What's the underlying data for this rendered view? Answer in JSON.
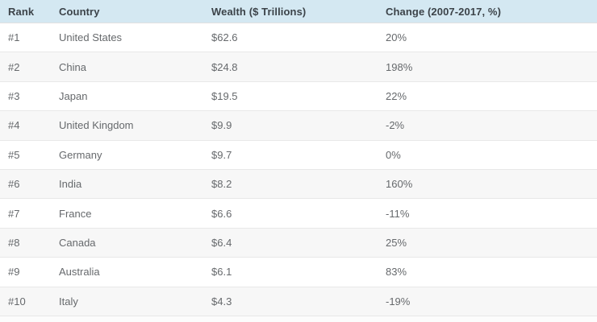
{
  "table": {
    "columns": [
      "Rank",
      "Country",
      "Wealth ($ Trillions)",
      "Change (2007-2017, %)"
    ],
    "rows": [
      [
        "#1",
        "United States",
        "$62.6",
        "20%"
      ],
      [
        "#2",
        "China",
        "$24.8",
        "198%"
      ],
      [
        "#3",
        "Japan",
        "$19.5",
        "22%"
      ],
      [
        "#4",
        "United Kingdom",
        "$9.9",
        "-2%"
      ],
      [
        "#5",
        "Germany",
        "$9.7",
        "0%"
      ],
      [
        "#6",
        "India",
        "$8.2",
        "160%"
      ],
      [
        "#7",
        "France",
        "$6.6",
        "-11%"
      ],
      [
        "#8",
        "Canada",
        "$6.4",
        "25%"
      ],
      [
        "#9",
        "Australia",
        "$6.1",
        "83%"
      ],
      [
        "#10",
        "Italy",
        "$4.3",
        "-19%"
      ]
    ]
  },
  "chart_data": {
    "type": "table",
    "title": "",
    "columns": [
      "Rank",
      "Country",
      "Wealth ($ Trillions)",
      "Change (2007-2017, %)"
    ],
    "rows": [
      {
        "rank": "#1",
        "country": "United States",
        "wealth_trillions": 62.6,
        "change_2007_2017_pct": 20
      },
      {
        "rank": "#2",
        "country": "China",
        "wealth_trillions": 24.8,
        "change_2007_2017_pct": 198
      },
      {
        "rank": "#3",
        "country": "Japan",
        "wealth_trillions": 19.5,
        "change_2007_2017_pct": 22
      },
      {
        "rank": "#4",
        "country": "United Kingdom",
        "wealth_trillions": 9.9,
        "change_2007_2017_pct": -2
      },
      {
        "rank": "#5",
        "country": "Germany",
        "wealth_trillions": 9.7,
        "change_2007_2017_pct": 0
      },
      {
        "rank": "#6",
        "country": "India",
        "wealth_trillions": 8.2,
        "change_2007_2017_pct": 160
      },
      {
        "rank": "#7",
        "country": "France",
        "wealth_trillions": 6.6,
        "change_2007_2017_pct": -11
      },
      {
        "rank": "#8",
        "country": "Canada",
        "wealth_trillions": 6.4,
        "change_2007_2017_pct": 25
      },
      {
        "rank": "#9",
        "country": "Australia",
        "wealth_trillions": 6.1,
        "change_2007_2017_pct": 83
      },
      {
        "rank": "#10",
        "country": "Italy",
        "wealth_trillions": 4.3,
        "change_2007_2017_pct": -19
      }
    ],
    "colors": {
      "header_bg": "#d4e8f2",
      "header_text": "#3c4349",
      "body_text": "#66696c",
      "alt_row_bg": "#f7f7f7",
      "row_border": "#e8e8e8"
    },
    "layout_hints": {
      "striped_rows": true,
      "grid": "horizontal-only",
      "header_style": "light-blue-band"
    }
  }
}
